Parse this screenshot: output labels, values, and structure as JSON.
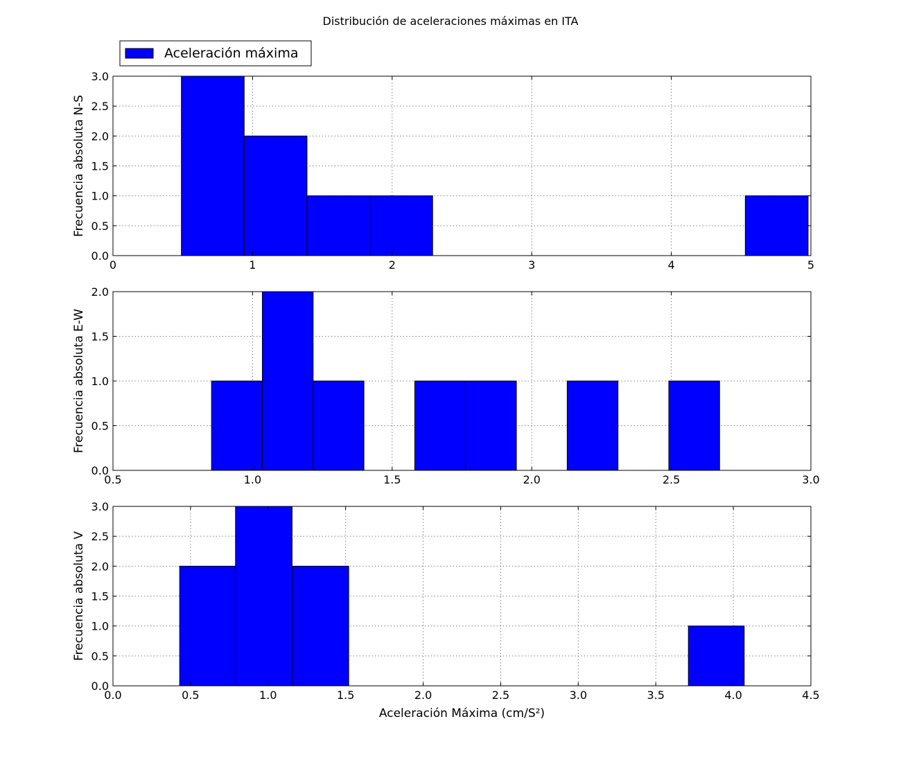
{
  "title": "Distribución de aceleraciones máximas en ITA",
  "legend": {
    "label": "Aceleración máxima",
    "placement": "upper-left (above first subplot)"
  },
  "colors": {
    "bar": "#0000ff",
    "edge": "#000000",
    "grid": "#808080"
  },
  "chart_data": [
    {
      "type": "bar",
      "kind": "histogram",
      "ylabel": "Frecuencia absoluta N-S",
      "xlabel": "",
      "xlim": [
        0,
        5
      ],
      "ylim": [
        0,
        3
      ],
      "grid": true,
      "xticks": [
        0,
        1,
        2,
        3,
        4,
        5
      ],
      "xtick_labels": [
        "0",
        "1",
        "2",
        "3",
        "4",
        "5"
      ],
      "yticks": [
        0,
        0.5,
        1,
        1.5,
        2,
        2.5,
        3
      ],
      "ytick_labels": [
        "0.0",
        "0.5",
        "1.0",
        "1.5",
        "2.0",
        "2.5",
        "3.0"
      ],
      "bins": [
        {
          "start": 0.49,
          "end": 0.94,
          "count": 3
        },
        {
          "start": 0.94,
          "end": 1.39,
          "count": 2
        },
        {
          "start": 1.39,
          "end": 1.84,
          "count": 1
        },
        {
          "start": 1.84,
          "end": 2.29,
          "count": 1
        },
        {
          "start": 4.53,
          "end": 4.98,
          "count": 1
        }
      ]
    },
    {
      "type": "bar",
      "kind": "histogram",
      "ylabel": "Frecuencia absoluta E-W",
      "xlabel": "",
      "xlim": [
        0.5,
        3.0
      ],
      "ylim": [
        0,
        2
      ],
      "grid": true,
      "xticks": [
        0.5,
        1.0,
        1.5,
        2.0,
        2.5,
        3.0
      ],
      "xtick_labels": [
        "0.5",
        "1.0",
        "1.5",
        "2.0",
        "2.5",
        "3.0"
      ],
      "yticks": [
        0,
        0.5,
        1,
        1.5,
        2
      ],
      "ytick_labels": [
        "0.0",
        "0.5",
        "1.0",
        "1.5",
        "2.0"
      ],
      "bins": [
        {
          "start": 0.853,
          "end": 1.035,
          "count": 1
        },
        {
          "start": 1.035,
          "end": 1.217,
          "count": 2
        },
        {
          "start": 1.217,
          "end": 1.399,
          "count": 1
        },
        {
          "start": 1.581,
          "end": 1.763,
          "count": 1
        },
        {
          "start": 1.763,
          "end": 1.945,
          "count": 1
        },
        {
          "start": 2.127,
          "end": 2.309,
          "count": 1
        },
        {
          "start": 2.491,
          "end": 2.673,
          "count": 1
        }
      ]
    },
    {
      "type": "bar",
      "kind": "histogram",
      "ylabel": "Frecuencia absoluta V",
      "xlabel": "Aceleración Máxima (cm/S²)",
      "xlim": [
        0,
        4.5
      ],
      "ylim": [
        0,
        3
      ],
      "grid": true,
      "xticks": [
        0,
        0.5,
        1,
        1.5,
        2,
        2.5,
        3,
        3.5,
        4,
        4.5
      ],
      "xtick_labels": [
        "0.0",
        "0.5",
        "1.0",
        "1.5",
        "2.0",
        "2.5",
        "3.0",
        "3.5",
        "4.0",
        "4.5"
      ],
      "yticks": [
        0,
        0.5,
        1,
        1.5,
        2,
        2.5,
        3
      ],
      "ytick_labels": [
        "0.0",
        "0.5",
        "1.0",
        "1.5",
        "2.0",
        "2.5",
        "3.0"
      ],
      "bins": [
        {
          "start": 0.43,
          "end": 0.79,
          "count": 2
        },
        {
          "start": 0.79,
          "end": 1.155,
          "count": 3
        },
        {
          "start": 1.155,
          "end": 1.52,
          "count": 2
        },
        {
          "start": 3.71,
          "end": 4.07,
          "count": 1
        }
      ]
    }
  ]
}
